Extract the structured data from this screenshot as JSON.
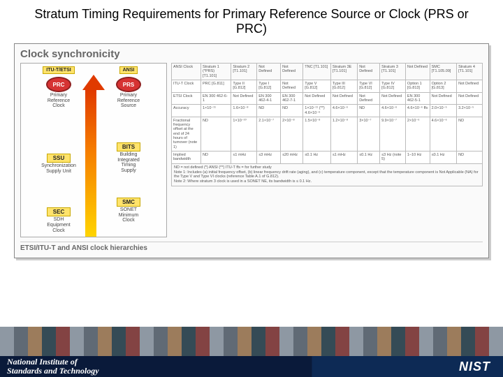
{
  "title": "Stratum Timing Requirements for Primary Reference Source or Clock (PRS or PRC)",
  "box_title": "Clock synchronicity",
  "caption": "ETSI/ITU-T and ANSI clock hierarchies",
  "hierarchy": {
    "left": {
      "head": "ITU-T/ETSI",
      "items": [
        {
          "shape": "oval",
          "label": "PRC",
          "sub": "Primary\nReference\nClock"
        },
        {
          "shape": "rect",
          "label": "SSU",
          "sub": "Synchronization\nSupply Unit"
        },
        {
          "shape": "rect",
          "label": "SEC",
          "sub": "SDH\nEquipment\nClock"
        }
      ]
    },
    "right": {
      "head": "ANSI",
      "items": [
        {
          "shape": "oval",
          "label": "PRS",
          "sub": "Primary\nReference\nSource"
        },
        {
          "shape": "rect",
          "label": "BITS",
          "sub": "Building\nIntegrated\nTiming\nSupply"
        },
        {
          "shape": "rect",
          "label": "SMC",
          "sub": "SONET\nMinimum\nClock"
        }
      ]
    }
  },
  "table": {
    "columns": [
      "ANSI Clock",
      "Stratum 1 (*PRS) [T1.101]",
      "Stratum 2 [T1.101]",
      "Not Defined",
      "Not Defined",
      "TNC [T1.101]",
      "Stratum 3E [T1.101]",
      "Not Defined",
      "Stratum 3 [T1.101]",
      "Not Defined",
      "SMC [T1.105.09]",
      "Stratum 4 [T1.101]"
    ],
    "rows": [
      [
        "ITU-T Clock",
        "PRC [G.811]",
        "Type II [G.812]",
        "Type I [G.812]",
        "Not Defined",
        "Type V [G.812]",
        "Type III [G.812]",
        "Type VI [G.812]",
        "Type IV [G.812]",
        "Option 1 [G.813]",
        "Option 2 [G.813]",
        "Not Defined"
      ],
      [
        "ETSI Clock",
        "EN 300 462-6-1",
        "Not Defined",
        "EN 300 462-4-1",
        "EN 300 462-7-1",
        "Not Defined",
        "Not Defined",
        "Not Defined",
        "Not Defined",
        "EN 300 462-5-1",
        "Not Defined",
        "Not Defined"
      ],
      [
        "Accuracy",
        "1×10⁻¹¹",
        "1.6×10⁻⁸",
        "ND",
        "ND",
        "1×10⁻¹¹ (**) 4.6×10⁻⁶",
        "4.6×10⁻⁶",
        "ND",
        "4.6×10⁻⁶",
        "4.6×10⁻⁶ ffs",
        "2.0×10⁻⁵",
        "3.2×10⁻⁵"
      ],
      [
        "Fractional frequency offset at the end of 24 hours of turnover (note 1)",
        "ND",
        "1×10⁻¹⁰",
        "2.1×10⁻⁷",
        "2×10⁻⁸",
        "1.5×10⁻⁸",
        "1.2×10⁻⁸",
        "3×10⁻⁷",
        "9.9×10⁻⁷",
        "2×10⁻⁶",
        "4.6×10⁻⁶",
        "ND"
      ],
      [
        "Implied bandwidth",
        "ND",
        "≤1 mHz",
        "≤3 mHz",
        "≤20 mHz",
        "≤0.1 Hz",
        "≤1 mHz",
        "≤0.1 Hz",
        "≤3 Hz (note 5)",
        "1–10 Hz",
        "≤0.1 Hz",
        "ND"
      ]
    ],
    "notes": [
      "ND = not defined   (*) ANSI   (**) ITU-T   ffs = for further study",
      "Note 1:  Includes (a) initial frequency offset, (b) linear frequency drift rate (aging), and (c) temperature component, except that the temperature component is Not Applicable (NA) for the Type V and Type VI clocks (reference Table A.1 of G.812).",
      "Note 2:  Where stratum 3 clock is used in a SONET NE, its bandwidth is ≤ 0.1 Hz."
    ]
  },
  "footer": {
    "org1": "National Institute of",
    "org2": "Standards and Technology",
    "logo": "NIST"
  },
  "colors": {
    "accent_red": "#d63333",
    "accent_yellow": "#ffe36b",
    "footer_dark": "#0a1a3a"
  }
}
